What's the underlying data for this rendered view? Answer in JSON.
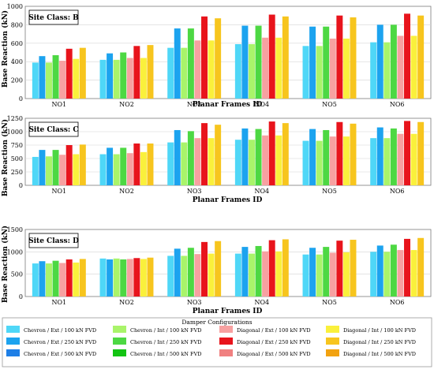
{
  "legend": {
    "title": "Damper Configurations",
    "entries": [
      {
        "label": "Chevron / Ext / 100 kN FVD",
        "color": "#4FD7F7"
      },
      {
        "label": "Chevron / Ext / 250 kN FVD",
        "color": "#1CA3EF"
      },
      {
        "label": "Chevron / Ext / 500 kN FVD",
        "color": "#1E7FE6"
      },
      {
        "label": "Chevron / Int / 100 kN FVD",
        "color": "#A9F46A"
      },
      {
        "label": "Chevron / Int / 250 kN FVD",
        "color": "#4DD843"
      },
      {
        "label": "Chevron / Int / 500 kN FVD",
        "color": "#12C412"
      },
      {
        "label": "Diagonal / Ext / 100 kN FVD",
        "color": "#F7A1A1"
      },
      {
        "label": "Diagonal / Ext / 250 kN FVD",
        "color": "#E8141C"
      },
      {
        "label": "Diagonal / Ext / 500 kN FVD",
        "color": "#F08080"
      },
      {
        "label": "Diagonal / Int / 100 kN FVD",
        "color": "#FAF03C"
      },
      {
        "label": "Diagonal / Int / 250 kN FVD",
        "color": "#F7C51E"
      },
      {
        "label": "Diagonal / Int / 500 kN FVD",
        "color": "#F2A210"
      }
    ]
  },
  "chart_data": [
    {
      "type": "bar",
      "site_label": "Site Class: B",
      "xlabel": "Planar Frames ID",
      "ylabel": "Base Reaction (kN)",
      "ylim": [
        0,
        1000
      ],
      "yticks": [
        "0",
        "200",
        "400",
        "600",
        "800",
        "1000"
      ],
      "grid": true,
      "categories": [
        "NO1",
        "NO2",
        "NO3",
        "NO4",
        "NO5",
        "NO6"
      ],
      "series": [
        {
          "name": "Chevron / Ext / 100 kN FVD",
          "values": [
            390,
            420,
            550,
            590,
            570,
            610
          ]
        },
        {
          "name": "Chevron / Ext / 250 kN FVD",
          "values": [
            460,
            490,
            760,
            790,
            780,
            800
          ]
        },
        {
          "name": "Chevron / Int / 100 kN FVD",
          "values": [
            390,
            420,
            550,
            590,
            570,
            610
          ]
        },
        {
          "name": "Chevron / Int / 250 kN FVD",
          "values": [
            470,
            500,
            760,
            790,
            780,
            800
          ]
        },
        {
          "name": "Diagonal / Ext / 100 kN FVD",
          "values": [
            410,
            440,
            630,
            660,
            650,
            680
          ]
        },
        {
          "name": "Diagonal / Ext / 250 kN FVD",
          "values": [
            540,
            570,
            890,
            910,
            900,
            920
          ]
        },
        {
          "name": "Diagonal / Int / 100 kN FVD",
          "values": [
            430,
            440,
            630,
            660,
            650,
            680
          ]
        },
        {
          "name": "Diagonal / Int / 250 kN FVD",
          "values": [
            550,
            580,
            870,
            890,
            880,
            900
          ]
        }
      ]
    },
    {
      "type": "bar",
      "site_label": "Site Class: C",
      "xlabel": "Planar Frames ID",
      "ylabel": "Base Reaction (kN)",
      "ylim": [
        0,
        1250
      ],
      "yticks": [
        "0",
        "250",
        "500",
        "750",
        "1000",
        "1250"
      ],
      "grid": true,
      "categories": [
        "NO1",
        "NO2",
        "NO3",
        "NO4",
        "NO5",
        "NO6"
      ],
      "series": [
        {
          "name": "Chevron / Ext / 100 kN FVD",
          "values": [
            530,
            580,
            800,
            850,
            830,
            880
          ]
        },
        {
          "name": "Chevron / Ext / 250 kN FVD",
          "values": [
            660,
            700,
            1030,
            1060,
            1050,
            1080
          ]
        },
        {
          "name": "Chevron / Int / 100 kN FVD",
          "values": [
            540,
            580,
            800,
            850,
            830,
            880
          ]
        },
        {
          "name": "Chevron / Int / 250 kN FVD",
          "values": [
            660,
            700,
            1010,
            1050,
            1030,
            1060
          ]
        },
        {
          "name": "Diagonal / Ext / 100 kN FVD",
          "values": [
            570,
            600,
            880,
            930,
            910,
            960
          ]
        },
        {
          "name": "Diagonal / Ext / 250 kN FVD",
          "values": [
            750,
            780,
            1160,
            1190,
            1180,
            1200
          ]
        },
        {
          "name": "Diagonal / Int / 100 kN FVD",
          "values": [
            580,
            620,
            880,
            930,
            910,
            960
          ]
        },
        {
          "name": "Diagonal / Int / 250 kN FVD",
          "values": [
            760,
            780,
            1130,
            1160,
            1150,
            1180
          ]
        }
      ]
    },
    {
      "type": "bar",
      "site_label": "Site Class: D",
      "xlabel": "Planar Frames ID",
      "ylabel": "Base Reaction (kN)",
      "ylim": [
        0,
        1500
      ],
      "yticks": [
        "0",
        "500",
        "1000",
        "1500"
      ],
      "grid": true,
      "categories": [
        "NO1",
        "NO2",
        "NO3",
        "NO4",
        "NO5",
        "NO6"
      ],
      "series": [
        {
          "name": "Chevron / Ext / 100 kN FVD",
          "values": [
            740,
            850,
            910,
            960,
            940,
            1000
          ]
        },
        {
          "name": "Chevron / Ext / 250 kN FVD",
          "values": [
            790,
            830,
            1070,
            1110,
            1090,
            1140
          ]
        },
        {
          "name": "Chevron / Int / 100 kN FVD",
          "values": [
            740,
            850,
            910,
            960,
            940,
            1000
          ]
        },
        {
          "name": "Chevron / Int / 250 kN FVD",
          "values": [
            800,
            830,
            1090,
            1130,
            1110,
            1160
          ]
        },
        {
          "name": "Diagonal / Ext / 100 kN FVD",
          "values": [
            750,
            840,
            950,
            1010,
            980,
            1040
          ]
        },
        {
          "name": "Diagonal / Ext / 250 kN FVD",
          "values": [
            830,
            860,
            1220,
            1260,
            1250,
            1290
          ]
        },
        {
          "name": "Diagonal / Int / 100 kN FVD",
          "values": [
            760,
            840,
            960,
            1010,
            990,
            1040
          ]
        },
        {
          "name": "Diagonal / Int / 250 kN FVD",
          "values": [
            840,
            870,
            1240,
            1280,
            1270,
            1310
          ]
        }
      ]
    }
  ]
}
